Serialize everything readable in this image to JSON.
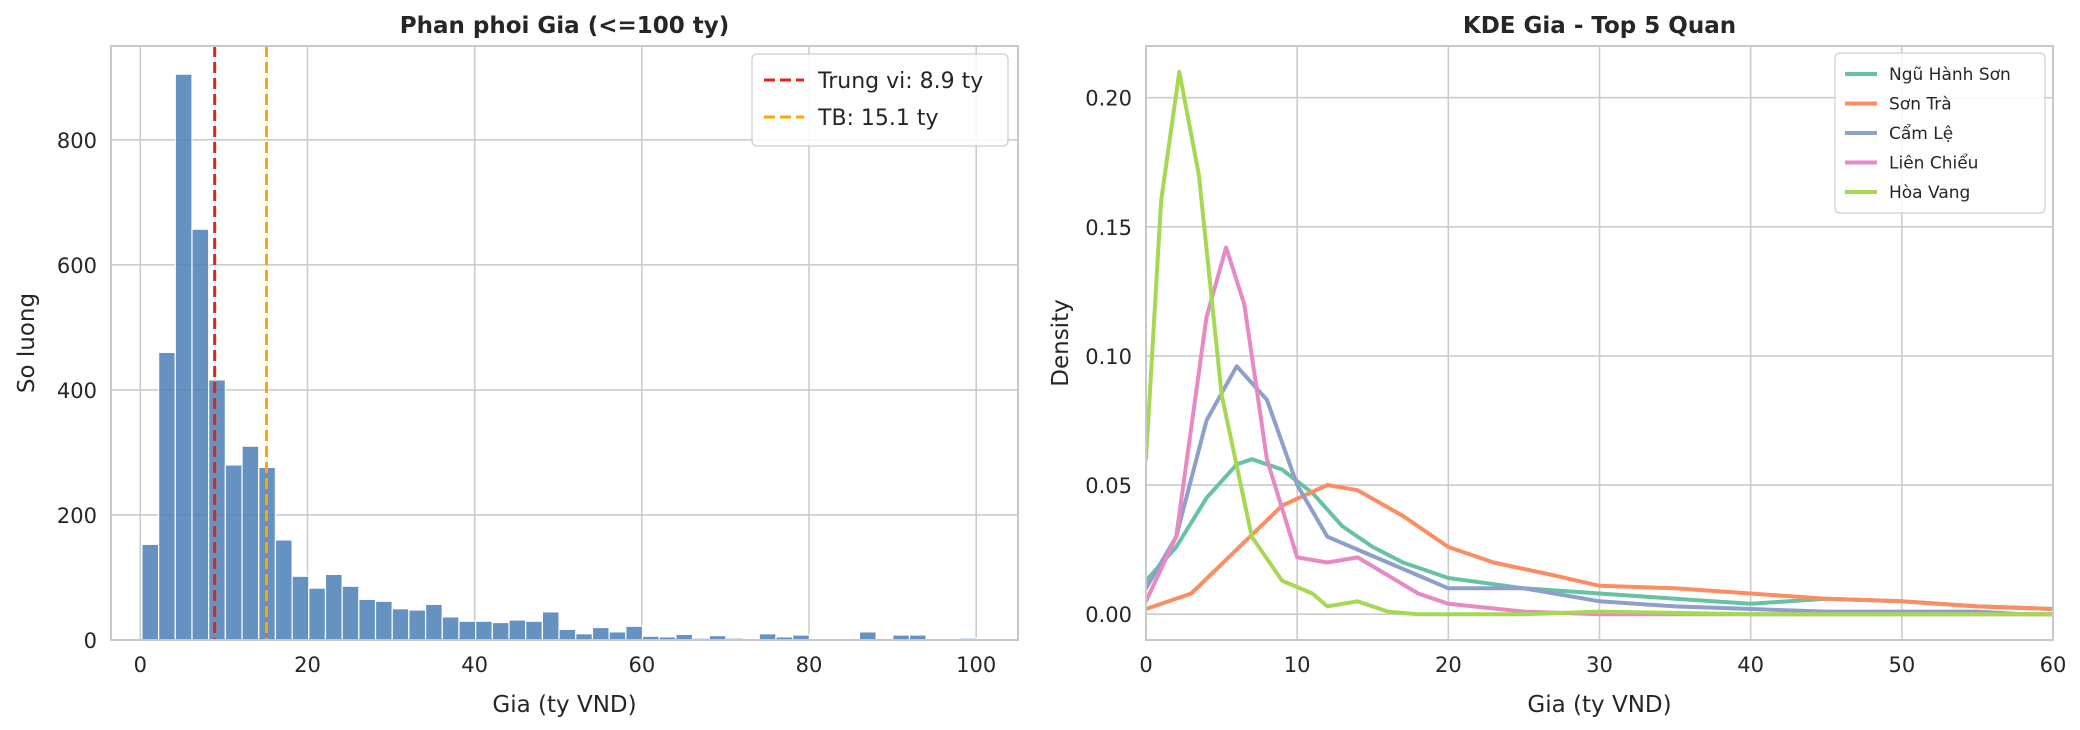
{
  "chart_data": [
    {
      "type": "bar",
      "title": "Phan phoi Gia (<=100 ty)",
      "xlabel": "Gia (ty VND)",
      "ylabel": "So luong",
      "xlim": [
        -3.5,
        105
      ],
      "ylim": [
        0,
        950
      ],
      "xticks": [
        0,
        20,
        40,
        60,
        80,
        100
      ],
      "yticks": [
        0,
        200,
        400,
        600,
        800
      ],
      "grid": true,
      "bar_color": "#4a7fb5",
      "bin_start": 0.2,
      "bin_width": 1.996,
      "values": [
        153,
        460,
        905,
        657,
        416,
        280,
        310,
        276,
        160,
        102,
        83,
        105,
        86,
        65,
        62,
        50,
        48,
        57,
        37,
        30,
        30,
        28,
        32,
        30,
        45,
        17,
        10,
        20,
        13,
        22,
        6,
        5,
        9,
        3,
        7,
        3,
        0,
        10,
        5,
        8,
        0,
        0,
        0,
        13,
        0,
        8,
        8,
        0,
        0,
        3,
        0,
        0,
        0,
        4
      ],
      "reference_lines": [
        {
          "label": "Trung vi: 8.9 ty",
          "x": 8.9,
          "color": "#e8211d"
        },
        {
          "label": "TB: 15.1 ty",
          "x": 15.1,
          "color": "#ffa500"
        }
      ],
      "legend_position": "top-right"
    },
    {
      "type": "line",
      "title": "KDE Gia - Top 5 Quan",
      "xlabel": "Gia (ty VND)",
      "ylabel": "Density",
      "xlim": [
        0,
        60
      ],
      "ylim": [
        -0.01,
        0.22
      ],
      "xticks": [
        0,
        10,
        20,
        30,
        40,
        50,
        60
      ],
      "yticks": [
        "0.00",
        "0.05",
        "0.10",
        "0.15",
        "0.20"
      ],
      "grid": true,
      "legend_position": "top-right",
      "series": [
        {
          "name": "Ngũ Hành Sơn",
          "color": "#66c2a5",
          "points": [
            [
              0,
              0.013
            ],
            [
              2,
              0.026
            ],
            [
              4,
              0.045
            ],
            [
              6,
              0.058
            ],
            [
              7,
              0.06
            ],
            [
              9,
              0.056
            ],
            [
              11,
              0.047
            ],
            [
              13,
              0.034
            ],
            [
              15,
              0.026
            ],
            [
              17,
              0.02
            ],
            [
              20,
              0.014
            ],
            [
              25,
              0.01
            ],
            [
              30,
              0.008
            ],
            [
              35,
              0.006
            ],
            [
              40,
              0.004
            ],
            [
              45,
              0.006
            ],
            [
              50,
              0.005
            ],
            [
              55,
              0.003
            ],
            [
              60,
              0.002
            ]
          ]
        },
        {
          "name": "Sơn Trà",
          "color": "#fc8d62",
          "points": [
            [
              0,
              0.002
            ],
            [
              3,
              0.008
            ],
            [
              6,
              0.025
            ],
            [
              9,
              0.042
            ],
            [
              12,
              0.05
            ],
            [
              14,
              0.048
            ],
            [
              17,
              0.038
            ],
            [
              20,
              0.026
            ],
            [
              23,
              0.02
            ],
            [
              27,
              0.015
            ],
            [
              30,
              0.011
            ],
            [
              35,
              0.01
            ],
            [
              40,
              0.008
            ],
            [
              45,
              0.006
            ],
            [
              50,
              0.005
            ],
            [
              55,
              0.003
            ],
            [
              60,
              0.002
            ]
          ]
        },
        {
          "name": "Cẩm Lệ",
          "color": "#8da0cb",
          "points": [
            [
              0,
              0.01
            ],
            [
              2,
              0.03
            ],
            [
              4,
              0.075
            ],
            [
              6,
              0.096
            ],
            [
              8,
              0.083
            ],
            [
              10,
              0.05
            ],
            [
              12,
              0.03
            ],
            [
              14,
              0.025
            ],
            [
              16,
              0.02
            ],
            [
              18,
              0.015
            ],
            [
              20,
              0.01
            ],
            [
              25,
              0.01
            ],
            [
              30,
              0.005
            ],
            [
              35,
              0.003
            ],
            [
              40,
              0.002
            ],
            [
              45,
              0.001
            ],
            [
              50,
              0.001
            ],
            [
              55,
              0.001
            ],
            [
              58,
              0.0
            ],
            [
              60,
              0.0
            ]
          ]
        },
        {
          "name": "Liên Chiểu",
          "color": "#e78ac3",
          "points": [
            [
              0,
              0.005
            ],
            [
              2,
              0.03
            ],
            [
              4,
              0.115
            ],
            [
              5.3,
              0.142
            ],
            [
              6.5,
              0.12
            ],
            [
              8,
              0.06
            ],
            [
              10,
              0.022
            ],
            [
              12,
              0.02
            ],
            [
              14,
              0.022
            ],
            [
              16,
              0.015
            ],
            [
              18,
              0.008
            ],
            [
              20,
              0.004
            ],
            [
              25,
              0.001
            ],
            [
              30,
              0.0
            ],
            [
              40,
              0.0
            ],
            [
              50,
              0.0
            ],
            [
              60,
              0.0
            ]
          ]
        },
        {
          "name": "Hòa Vang",
          "color": "#a6d854",
          "points": [
            [
              0,
              0.06
            ],
            [
              1,
              0.16
            ],
            [
              2.2,
              0.21
            ],
            [
              3.5,
              0.17
            ],
            [
              5,
              0.085
            ],
            [
              7,
              0.03
            ],
            [
              9,
              0.013
            ],
            [
              11,
              0.008
            ],
            [
              12,
              0.003
            ],
            [
              14,
              0.005
            ],
            [
              16,
              0.001
            ],
            [
              18,
              0.0
            ],
            [
              25,
              0.0
            ],
            [
              30,
              0.001
            ],
            [
              40,
              0.0
            ],
            [
              50,
              0.0
            ],
            [
              60,
              0.0
            ]
          ]
        }
      ]
    }
  ]
}
